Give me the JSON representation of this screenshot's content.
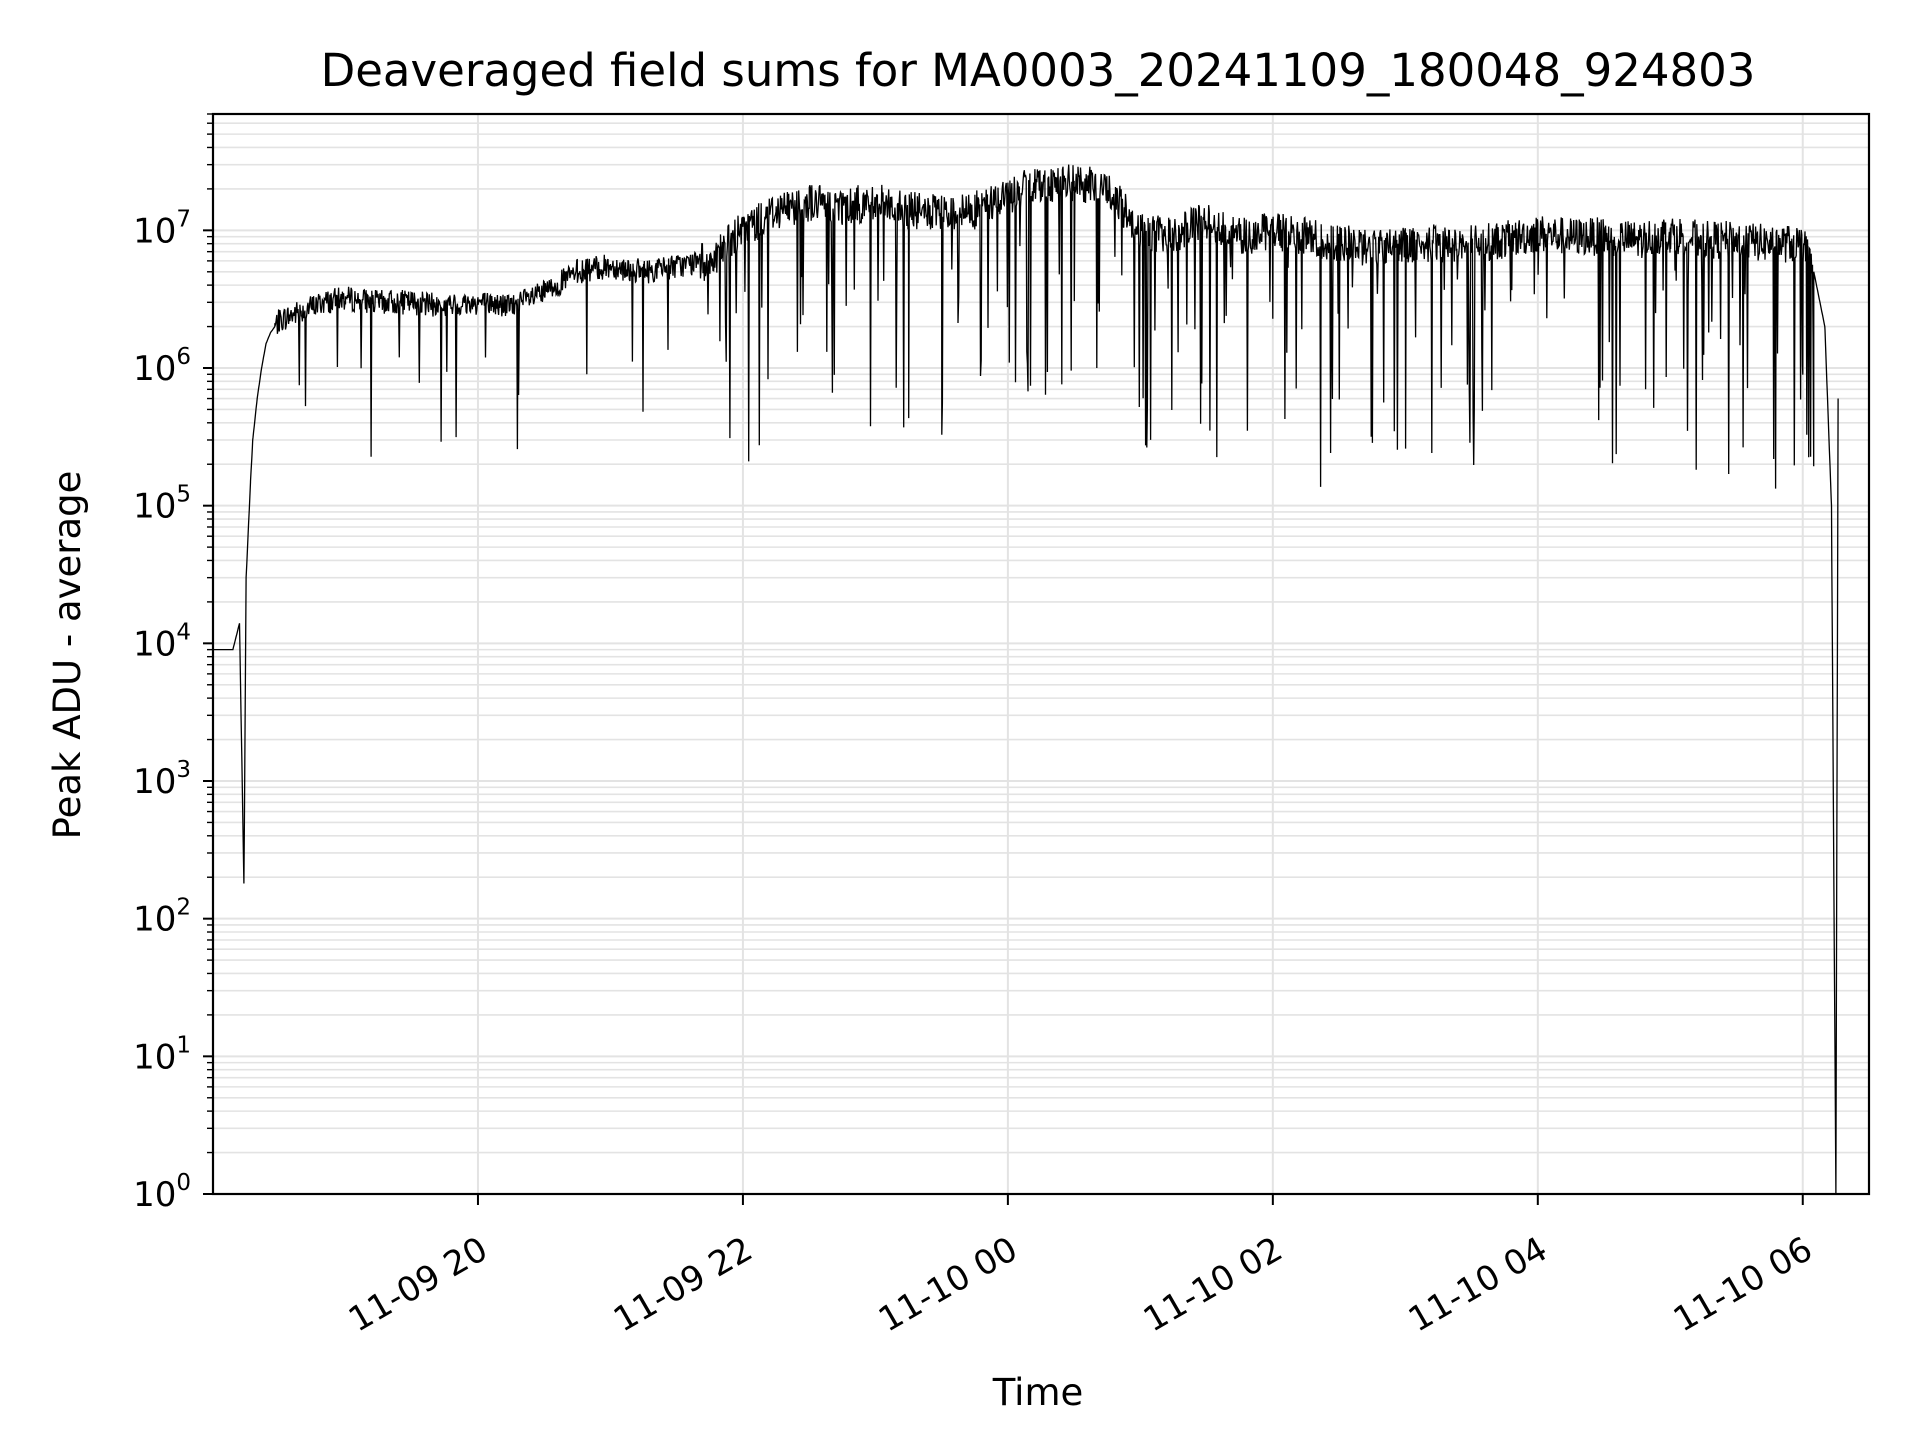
{
  "chart_data": {
    "type": "line",
    "title": "Deaveraged field sums for MA0003_20241109_180048_924803",
    "xlabel": "Time",
    "ylabel": "Peak ADU - average",
    "yscale": "log",
    "ylim": [
      1,
      70000000
    ],
    "xlim": [
      "2024-11-09 18:00",
      "2024-11-10 06:30"
    ],
    "x_ticks": [
      "11-09 20",
      "11-09 22",
      "11-10 00",
      "11-10 02",
      "11-10 04",
      "11-10 06"
    ],
    "y_ticks": [
      {
        "base": "10",
        "exp": "0"
      },
      {
        "base": "10",
        "exp": "1"
      },
      {
        "base": "10",
        "exp": "2"
      },
      {
        "base": "10",
        "exp": "3"
      },
      {
        "base": "10",
        "exp": "4"
      },
      {
        "base": "10",
        "exp": "5"
      },
      {
        "base": "10",
        "exp": "6"
      },
      {
        "base": "10",
        "exp": "7"
      }
    ],
    "grid": true,
    "series": [
      {
        "color": "#000000",
        "x": [
          "2024-11-09 18:00",
          "2024-11-09 18:09",
          "2024-11-09 18:12",
          "2024-11-09 18:14",
          "2024-11-09 18:15",
          "2024-11-09 18:17",
          "2024-11-09 18:18",
          "2024-11-09 18:20",
          "2024-11-09 18:22",
          "2024-11-09 18:24",
          "2024-11-09 18:26",
          "2024-11-09 18:28",
          "2024-11-09 18:30",
          "2024-11-09 18:40",
          "2024-11-09 18:50",
          "2024-11-09 19:00",
          "2024-11-09 19:15",
          "2024-11-09 19:30",
          "2024-11-09 19:45",
          "2024-11-09 20:00",
          "2024-11-09 20:15",
          "2024-11-09 20:30",
          "2024-11-09 20:45",
          "2024-11-09 21:00",
          "2024-11-09 21:15",
          "2024-11-09 21:30",
          "2024-11-09 21:45",
          "2024-11-09 22:00",
          "2024-11-09 22:15",
          "2024-11-09 22:30",
          "2024-11-09 22:45",
          "2024-11-09 23:00",
          "2024-11-09 23:15",
          "2024-11-09 23:30",
          "2024-11-09 23:45",
          "2024-11-10 00:00",
          "2024-11-10 00:15",
          "2024-11-10 00:30",
          "2024-11-10 00:45",
          "2024-11-10 01:00",
          "2024-11-10 01:15",
          "2024-11-10 01:30",
          "2024-11-10 01:45",
          "2024-11-10 02:00",
          "2024-11-10 02:15",
          "2024-11-10 02:30",
          "2024-11-10 02:45",
          "2024-11-10 03:00",
          "2024-11-10 03:15",
          "2024-11-10 03:30",
          "2024-11-10 03:45",
          "2024-11-10 04:00",
          "2024-11-10 04:15",
          "2024-11-10 04:30",
          "2024-11-10 04:45",
          "2024-11-10 05:00",
          "2024-11-10 05:15",
          "2024-11-10 05:30",
          "2024-11-10 05:45",
          "2024-11-10 06:00",
          "2024-11-10 06:05",
          "2024-11-10 06:10",
          "2024-11-10 06:13",
          "2024-11-10 06:15",
          "2024-11-10 06:16"
        ],
        "y": [
          9000,
          9000,
          14000,
          180,
          30000,
          150000,
          300000,
          600000,
          1000000,
          1500000,
          1800000,
          2000000,
          2200000,
          2600000,
          3000000,
          3200000,
          3000000,
          3000000,
          2800000,
          3000000,
          2800000,
          3500000,
          5000000,
          5500000,
          5000000,
          5500000,
          6000000,
          10000000,
          14000000,
          16000000,
          15000000,
          16000000,
          14000000,
          13000000,
          14000000,
          18000000,
          22000000,
          22000000,
          20000000,
          10000000,
          9000000,
          12000000,
          9000000,
          10000000,
          9000000,
          8000000,
          7500000,
          8000000,
          8000000,
          8000000,
          8500000,
          9500000,
          9000000,
          9000000,
          8500000,
          9500000,
          8500000,
          8500000,
          8000000,
          8000000,
          5000000,
          2000000,
          100000,
          1,
          600000
        ]
      }
    ]
  }
}
